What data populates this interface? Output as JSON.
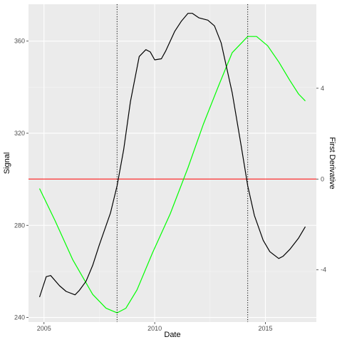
{
  "colors": {
    "panel_background": "#ebebeb",
    "grid_major": "#ffffff",
    "grid_minor": "#f5f5f5",
    "signal": "#00ff00",
    "derivative": "#000000",
    "zero_line": "#ff0000",
    "vertical_markers": "#000000",
    "left_axis_title": "#00ff00"
  },
  "chart_data": {
    "type": "line",
    "xlabel": "Date",
    "ylabel_left": "Signal",
    "ylabel_right": "First Derivative",
    "xlim": [
      2004.3,
      2017.3
    ],
    "ylim_left": [
      238,
      376
    ],
    "ylim_right": [
      -6.3,
      7.7
    ],
    "x_ticks": [
      2005,
      2010,
      2015
    ],
    "x_tick_labels": [
      "2005",
      "2010",
      "2015"
    ],
    "y_left_ticks": [
      240,
      280,
      320,
      360
    ],
    "y_left_tick_labels": [
      "240",
      "280",
      "320",
      "360"
    ],
    "y_right_ticks": [
      -4,
      0,
      4
    ],
    "y_right_tick_labels": [
      "-4",
      "0",
      "4"
    ],
    "grid": true,
    "horizontal_line": {
      "axis": "right",
      "y": 0,
      "color": "#ff0000"
    },
    "vertical_lines": [
      2008.3,
      2014.2
    ],
    "series": [
      {
        "axis": "left",
        "color": "#00ff00",
        "x": [
          2004.8,
          2005.5,
          2006.3,
          2007.2,
          2007.8,
          2008.3,
          2008.7,
          2009.2,
          2009.9,
          2010.7,
          2011.5,
          2012.2,
          2012.9,
          2013.5,
          2014.2,
          2014.6,
          2015.1,
          2015.6,
          2016.1,
          2016.5,
          2016.8
        ],
        "y": [
          296,
          282,
          265,
          250,
          244,
          242,
          244,
          252,
          268,
          285,
          305,
          324,
          341,
          355,
          362,
          362,
          358,
          351,
          343,
          337,
          334
        ]
      },
      {
        "axis": "right",
        "color": "#000000",
        "x": [
          2004.8,
          2005.1,
          2005.3,
          2005.7,
          2006.0,
          2006.4,
          2006.6,
          2006.9,
          2007.2,
          2007.5,
          2008.0,
          2008.3,
          2008.6,
          2008.9,
          2009.3,
          2009.6,
          2009.8,
          2010.0,
          2010.3,
          2010.5,
          2010.9,
          2011.2,
          2011.5,
          2011.7,
          2012.0,
          2012.4,
          2012.7,
          2013.0,
          2013.5,
          2013.9,
          2014.2,
          2014.5,
          2014.9,
          2015.2,
          2015.6,
          2015.8,
          2016.1,
          2016.5,
          2016.8
        ],
        "y": [
          -5.2,
          -4.3,
          -4.25,
          -4.7,
          -4.95,
          -5.1,
          -4.9,
          -4.5,
          -3.8,
          -2.9,
          -1.5,
          -0.3,
          1.3,
          3.4,
          5.4,
          5.7,
          5.6,
          5.25,
          5.3,
          5.65,
          6.5,
          6.95,
          7.3,
          7.3,
          7.1,
          7.0,
          6.75,
          6.0,
          3.8,
          1.5,
          -0.3,
          -1.6,
          -2.7,
          -3.2,
          -3.5,
          -3.4,
          -3.1,
          -2.6,
          -2.1
        ]
      }
    ]
  }
}
